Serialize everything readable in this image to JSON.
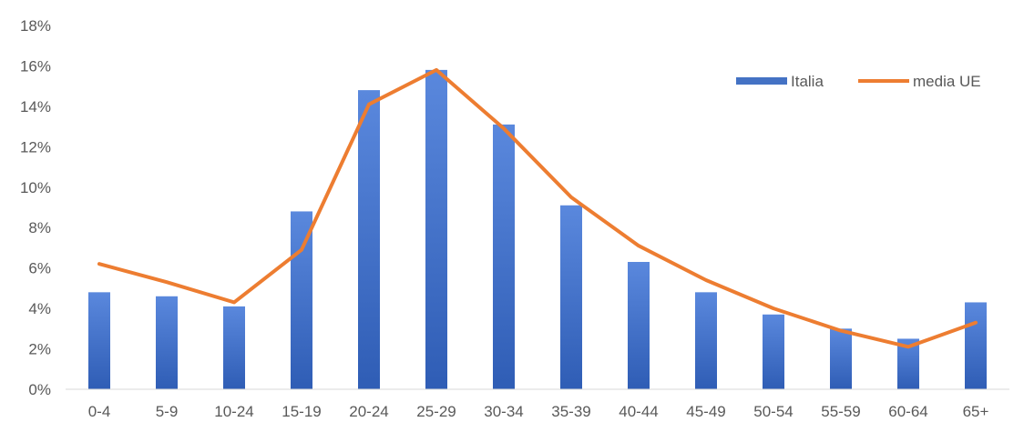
{
  "chart_data": {
    "type": "bar",
    "categories": [
      "0-4",
      "5-9",
      "10-24",
      "15-19",
      "20-24",
      "25-29",
      "30-34",
      "35-39",
      "40-44",
      "45-49",
      "50-54",
      "55-59",
      "60-64",
      "65+"
    ],
    "series": [
      {
        "name": "Italia",
        "type": "bar",
        "color": "#4472C4",
        "values": [
          4.8,
          4.6,
          4.1,
          8.8,
          14.8,
          15.8,
          13.1,
          9.1,
          6.3,
          4.8,
          3.7,
          3.0,
          2.5,
          4.3
        ]
      },
      {
        "name": "media UE",
        "type": "line",
        "color": "#ED7D31",
        "values": [
          6.2,
          5.3,
          4.3,
          6.9,
          14.1,
          15.8,
          12.9,
          9.5,
          7.1,
          5.4,
          4.0,
          2.9,
          2.1,
          3.3
        ]
      }
    ],
    "ylim": [
      0,
      18
    ],
    "yticks": [
      "0%",
      "2%",
      "4%",
      "6%",
      "8%",
      "10%",
      "12%",
      "14%",
      "16%",
      "18%"
    ],
    "legend": "top-right",
    "grid": false
  }
}
